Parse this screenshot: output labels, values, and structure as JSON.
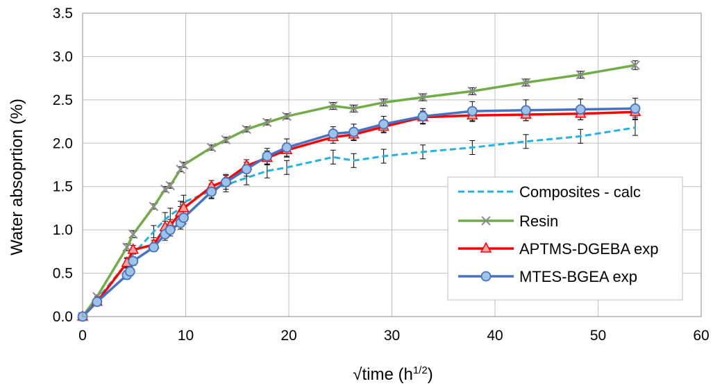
{
  "chart_data": {
    "type": "line",
    "xlabel": "√time (h",
    "xlabel_sup": "1/2",
    "xlabel_end": ")",
    "ylabel": "Water absoprtion (%)",
    "xlim": [
      0,
      60
    ],
    "ylim": [
      0,
      3.5
    ],
    "xticks": [
      0,
      10,
      20,
      30,
      40,
      50,
      60
    ],
    "yticks": [
      0,
      0.5,
      1.0,
      1.5,
      2.0,
      2.5,
      3.0,
      3.5
    ],
    "xtick_labels": [
      "0",
      "10",
      "20",
      "30",
      "40",
      "50",
      "60"
    ],
    "ytick_labels": [
      "0.0",
      "0.5",
      "1.0",
      "1.5",
      "2.0",
      "2.5",
      "3.0",
      "3.5"
    ],
    "grid": true,
    "legend_position": "lower-right",
    "series": [
      {
        "name": "Composites - calc",
        "color": "#1fb3e6",
        "dash": true,
        "marker": "none",
        "x": [
          0,
          1.4,
          4.3,
          4.9,
          6.9,
          8.0,
          8.5,
          9.5,
          9.8,
          12.5,
          13.9,
          15.9,
          17.9,
          19.8,
          24.3,
          26.3,
          29.2,
          33.0,
          37.8,
          43.0,
          48.3,
          53.6
        ],
        "y": [
          0,
          0.2,
          0.62,
          0.72,
          0.98,
          1.12,
          1.17,
          1.25,
          1.32,
          1.45,
          1.52,
          1.6,
          1.68,
          1.72,
          1.84,
          1.8,
          1.85,
          1.9,
          1.95,
          2.02,
          2.08,
          2.18
        ],
        "err": [
          0,
          0.03,
          0.05,
          0.05,
          0.07,
          0.08,
          0.08,
          0.08,
          0.08,
          0.08,
          0.08,
          0.08,
          0.08,
          0.08,
          0.08,
          0.08,
          0.08,
          0.08,
          0.08,
          0.08,
          0.08,
          0.09
        ]
      },
      {
        "name": "Resin",
        "color": "#70ad47",
        "dash": false,
        "marker": "x",
        "x": [
          0,
          1.4,
          4.3,
          4.9,
          6.9,
          8.0,
          8.5,
          9.5,
          9.8,
          12.5,
          13.9,
          15.9,
          17.9,
          19.8,
          24.3,
          26.3,
          29.2,
          33.0,
          37.8,
          43.0,
          48.3,
          53.6
        ],
        "y": [
          0,
          0.23,
          0.8,
          0.95,
          1.27,
          1.47,
          1.51,
          1.7,
          1.75,
          1.95,
          2.04,
          2.16,
          2.24,
          2.31,
          2.43,
          2.4,
          2.47,
          2.53,
          2.6,
          2.7,
          2.79,
          2.9
        ],
        "err": [
          0,
          0.02,
          0.04,
          0.04,
          0.03,
          0.03,
          0.03,
          0.03,
          0.03,
          0.03,
          0.03,
          0.03,
          0.03,
          0.03,
          0.04,
          0.04,
          0.04,
          0.04,
          0.04,
          0.04,
          0.04,
          0.05
        ]
      },
      {
        "name": "APTMS-DGEBA exp",
        "color": "#ff0000",
        "dash": false,
        "marker": "triangle",
        "x": [
          0,
          1.4,
          4.3,
          4.9,
          6.9,
          8.0,
          8.5,
          9.5,
          9.8,
          12.5,
          13.9,
          15.9,
          17.9,
          19.8,
          24.3,
          26.3,
          29.2,
          33.0,
          37.8,
          43.0,
          48.3,
          53.6
        ],
        "y": [
          0,
          0.17,
          0.62,
          0.77,
          0.83,
          1.03,
          1.05,
          1.2,
          1.25,
          1.5,
          1.57,
          1.74,
          1.83,
          1.92,
          2.07,
          2.1,
          2.19,
          2.3,
          2.32,
          2.33,
          2.34,
          2.36
        ],
        "err": [
          0,
          0.03,
          0.06,
          0.05,
          0.05,
          0.07,
          0.07,
          0.07,
          0.07,
          0.07,
          0.07,
          0.07,
          0.08,
          0.08,
          0.07,
          0.07,
          0.07,
          0.07,
          0.07,
          0.07,
          0.07,
          0.06
        ]
      },
      {
        "name": "MTES-BGEA exp",
        "color": "#4472c4",
        "dash": false,
        "marker": "circle",
        "x": [
          0,
          1.4,
          4.3,
          4.6,
          4.9,
          6.9,
          8.0,
          8.5,
          9.5,
          9.8,
          12.5,
          13.9,
          15.9,
          17.9,
          19.8,
          24.3,
          26.3,
          29.2,
          33.0,
          37.8,
          43.0,
          48.3,
          53.6
        ],
        "y": [
          0,
          0.17,
          0.48,
          0.52,
          0.64,
          0.8,
          0.95,
          1.0,
          1.08,
          1.14,
          1.44,
          1.55,
          1.7,
          1.85,
          1.95,
          2.11,
          2.13,
          2.22,
          2.31,
          2.37,
          2.38,
          2.39,
          2.4
        ],
        "err": [
          0,
          0.03,
          0.05,
          0.05,
          0.05,
          0.05,
          0.07,
          0.07,
          0.07,
          0.07,
          0.08,
          0.08,
          0.08,
          0.09,
          0.1,
          0.08,
          0.09,
          0.09,
          0.09,
          0.11,
          0.12,
          0.12,
          0.12
        ]
      }
    ]
  }
}
